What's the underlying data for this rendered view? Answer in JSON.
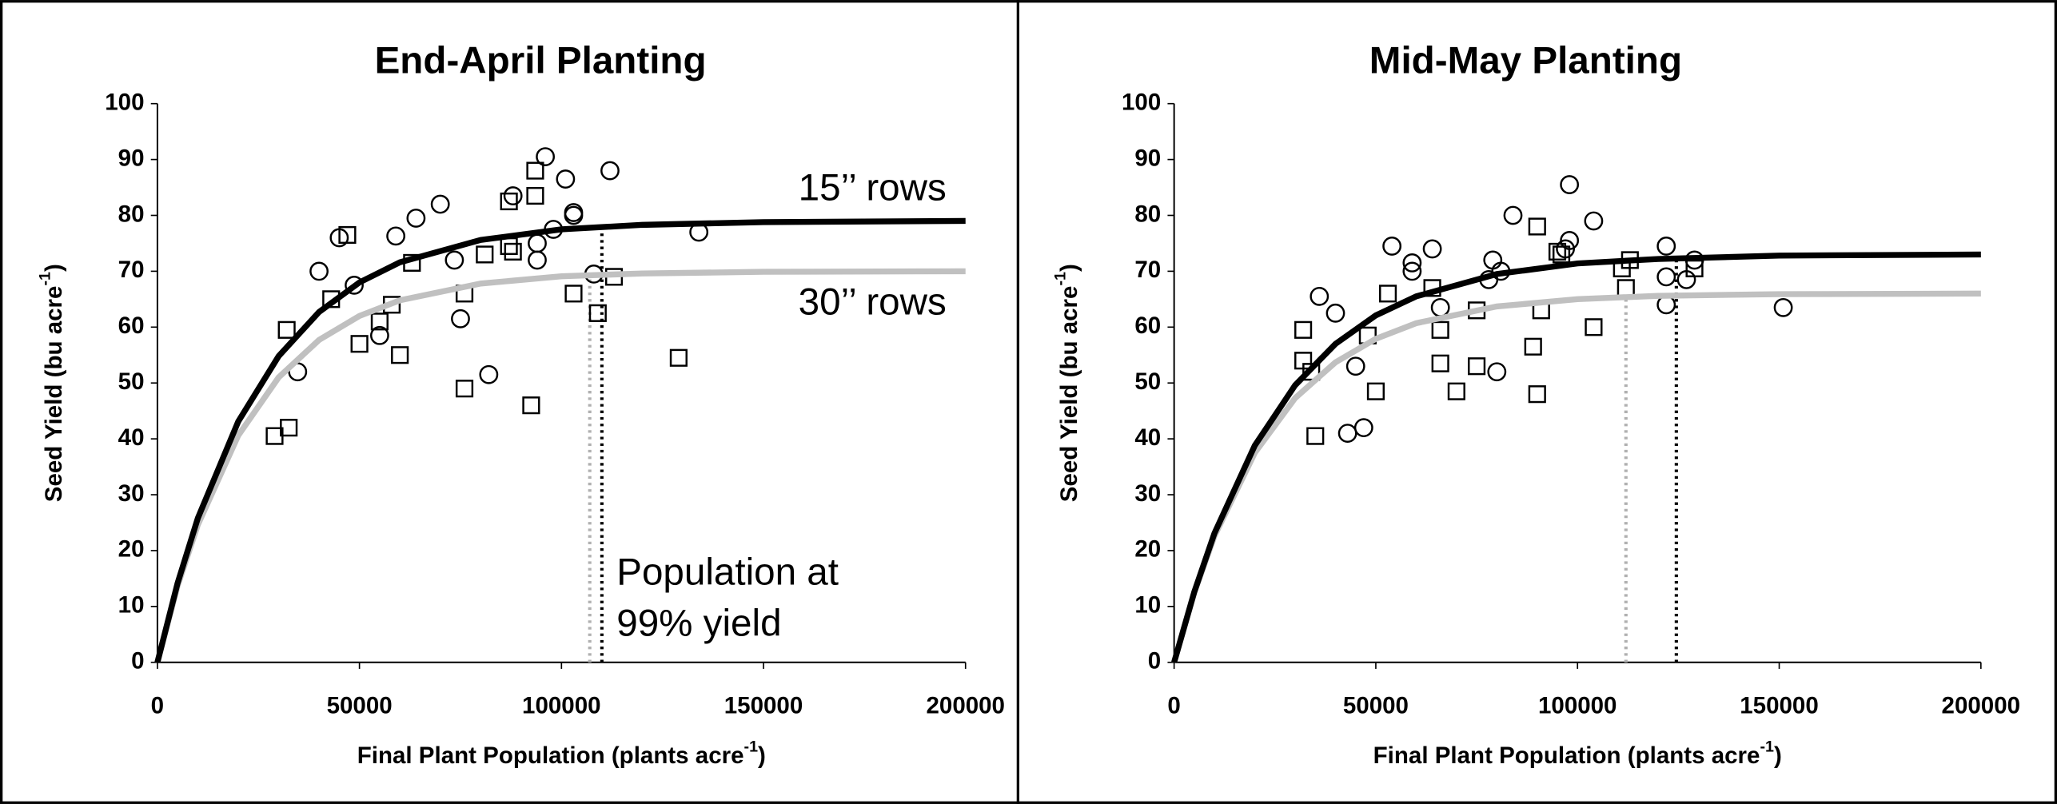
{
  "chart_data": [
    {
      "type": "scatter",
      "title": "End-April Planting",
      "x_label": "Final Plant Population (plants acre",
      "x_label_sup": "-1",
      "x_label_end": ")",
      "y_label": "Seed Yield (bu acre",
      "y_label_sup": "-1",
      "y_label_end": ")",
      "xlim": [
        0,
        200000
      ],
      "xticks": [
        0,
        50000,
        100000,
        150000,
        200000
      ],
      "ylim": [
        0,
        100
      ],
      "yticks": [
        0,
        10,
        20,
        30,
        40,
        50,
        60,
        70,
        80,
        90,
        100
      ],
      "series": [
        {
          "marker": "circle",
          "color": "#000000",
          "x": [
            34700,
            40000,
            45000,
            48700,
            55000,
            59000,
            64000,
            70000,
            73500,
            75000,
            82000,
            88000,
            94000,
            94000,
            96000,
            98000,
            101000,
            103000,
            103000,
            108000,
            112000,
            134000
          ],
          "values": [
            52,
            70,
            76,
            67.5,
            58.5,
            76.3,
            79.5,
            82,
            72,
            61.5,
            51.5,
            83.5,
            75,
            72,
            90.5,
            77.5,
            86.5,
            80.5,
            80,
            69.5,
            88,
            77
          ]
        },
        {
          "marker": "square",
          "color": "#000000",
          "x": [
            29000,
            32000,
            32500,
            43000,
            47000,
            50000,
            55000,
            58000,
            60000,
            63000,
            76000,
            76000,
            81000,
            87000,
            87000,
            88000,
            92500,
            93500,
            93500,
            103000,
            109000,
            113000,
            129000
          ],
          "values": [
            40.5,
            59.5,
            42,
            65,
            76.5,
            57,
            61,
            64,
            55,
            71.5,
            66,
            49,
            73,
            74.5,
            82.5,
            73.5,
            46,
            88,
            83.5,
            66,
            62.5,
            69,
            54.5
          ]
        }
      ],
      "curves": [
        {
          "label": "15’’ rows",
          "color": "#000000",
          "x": [
            0,
            5000,
            10000,
            20000,
            30000,
            40000,
            50000,
            60000,
            80000,
            100000,
            120000,
            150000,
            200000
          ],
          "values": [
            0,
            14.2,
            25.8,
            43.1,
            54.8,
            62.7,
            68.0,
            71.6,
            75.6,
            77.5,
            78.3,
            78.8,
            79.0
          ]
        },
        {
          "label": "30’’ rows",
          "color": "#c0c0c0",
          "x": [
            0,
            5000,
            10000,
            20000,
            30000,
            40000,
            50000,
            60000,
            80000,
            100000,
            120000,
            150000,
            200000
          ],
          "values": [
            0,
            13.7,
            24.6,
            40.6,
            51.0,
            57.7,
            62.0,
            64.8,
            67.8,
            69.1,
            69.6,
            69.9,
            70.0
          ]
        }
      ],
      "thresholds": [
        {
          "x": 107000,
          "y": 69.3,
          "color": "#b0b0b0"
        },
        {
          "x": 110000,
          "y": 78.6,
          "color": "#000000"
        }
      ],
      "annotation": [
        "Population at",
        "99% yield"
      ]
    },
    {
      "type": "scatter",
      "title": "Mid-May Planting",
      "x_label": "Final Plant Population (plants acre",
      "x_label_sup": "-1",
      "x_label_end": ")",
      "y_label": "Seed Yield (bu acre",
      "y_label_sup": "-1",
      "y_label_end": ")",
      "xlim": [
        0,
        200000
      ],
      "xticks": [
        0,
        50000,
        100000,
        150000,
        200000
      ],
      "ylim": [
        0,
        100
      ],
      "yticks": [
        0,
        10,
        20,
        30,
        40,
        50,
        60,
        70,
        80,
        90,
        100
      ],
      "series": [
        {
          "marker": "circle",
          "color": "#000000",
          "x": [
            36000,
            40000,
            43000,
            45000,
            47000,
            54000,
            59000,
            59000,
            64000,
            66000,
            78000,
            79000,
            80000,
            81000,
            84000,
            97000,
            98000,
            98000,
            104000,
            122000,
            122000,
            122000,
            127000,
            129000,
            151000
          ],
          "values": [
            65.5,
            62.5,
            41,
            53,
            42,
            74.5,
            70,
            71.5,
            74,
            63.5,
            68.5,
            72,
            52,
            70,
            80,
            74,
            75.5,
            85.5,
            79,
            74.5,
            69,
            64,
            68.5,
            72,
            63.5
          ]
        },
        {
          "marker": "square",
          "color": "#000000",
          "x": [
            32000,
            32000,
            34000,
            35000,
            48000,
            50000,
            53000,
            64000,
            66000,
            66000,
            70000,
            75000,
            75000,
            89000,
            90000,
            90000,
            91000,
            95000,
            96000,
            104000,
            111000,
            112000,
            113000,
            129000
          ],
          "values": [
            59.5,
            54,
            52,
            40.5,
            58.5,
            48.5,
            66,
            67,
            59.5,
            53.5,
            48.5,
            63,
            53,
            56.5,
            78,
            48,
            63,
            73.5,
            73,
            60,
            70.5,
            67,
            72,
            70.5
          ]
        }
      ],
      "curves": [
        {
          "color": "#000000",
          "x": [
            0,
            5000,
            10000,
            20000,
            30000,
            40000,
            50000,
            60000,
            80000,
            100000,
            120000,
            150000,
            200000
          ],
          "values": [
            0,
            12.6,
            23.1,
            38.8,
            49.6,
            57.0,
            62.1,
            65.5,
            69.5,
            71.4,
            72.2,
            72.8,
            73.0
          ]
        },
        {
          "color": "#c0c0c0",
          "x": [
            0,
            5000,
            10000,
            20000,
            30000,
            40000,
            50000,
            60000,
            80000,
            100000,
            120000,
            150000,
            200000
          ],
          "values": [
            0,
            12.5,
            22.6,
            37.5,
            47.3,
            53.7,
            57.9,
            60.7,
            63.7,
            65.0,
            65.6,
            65.9,
            66.0
          ]
        }
      ],
      "thresholds": [
        {
          "x": 112000,
          "y": 65.4,
          "color": "#b0b0b0"
        },
        {
          "x": 124500,
          "y": 72.4,
          "color": "#000000"
        }
      ]
    }
  ]
}
